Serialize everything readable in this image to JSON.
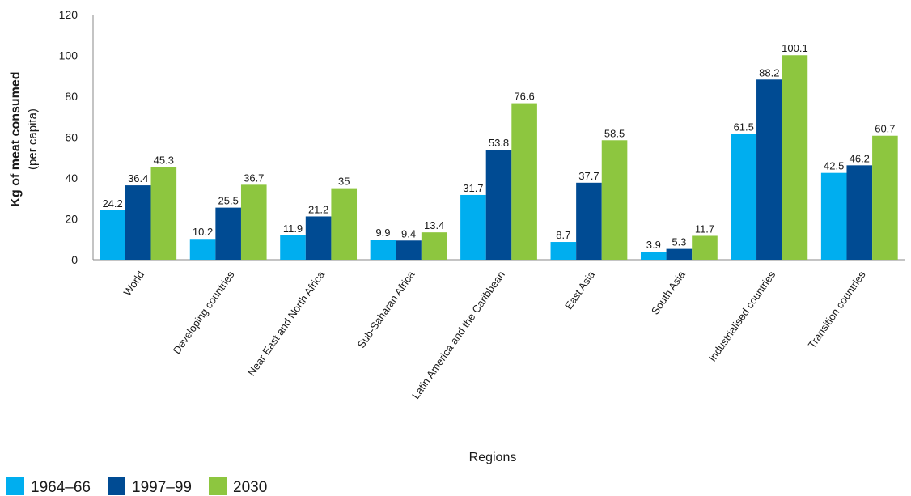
{
  "chart_data": {
    "type": "bar",
    "categories": [
      "World",
      "Developing countries",
      "Near East and North Africa",
      "Sub-Saharan Africa",
      "Latin America and the Caribbean",
      "East Asia",
      "South Asia",
      "Industrialised countries",
      "Transition countries"
    ],
    "series": [
      {
        "name": "1964–66",
        "color": "#00aeef",
        "values": [
          24.2,
          10.2,
          11.9,
          9.9,
          31.7,
          8.7,
          3.9,
          61.5,
          42.5
        ]
      },
      {
        "name": "1997–99",
        "color": "#004b93",
        "values": [
          36.4,
          25.5,
          21.2,
          9.4,
          53.8,
          37.7,
          5.3,
          88.2,
          46.2
        ]
      },
      {
        "name": "2030",
        "color": "#8dc63f",
        "values": [
          45.3,
          36.7,
          35,
          13.4,
          76.6,
          58.5,
          11.7,
          100.1,
          60.7
        ]
      }
    ],
    "title": "",
    "xlabel": "Regions",
    "ylabel": "Kg of meat consumed",
    "ylabel_sub": "(per capita)",
    "ylim": [
      0,
      120
    ],
    "yticks": [
      0,
      20,
      40,
      60,
      80,
      100,
      120
    ],
    "grid": false,
    "legend": "bottom-left"
  }
}
